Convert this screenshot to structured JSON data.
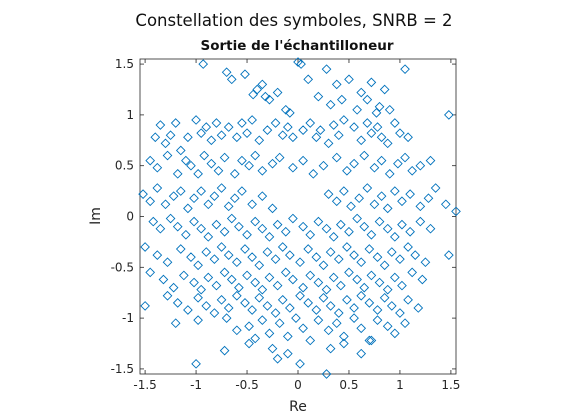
{
  "figure": {
    "suptitle": "Constellation des symboles, SNRB = 2"
  },
  "chart_data": {
    "type": "scatter",
    "title": "Sortie de l'échantilloneur",
    "xlabel": "Re",
    "ylabel": "Im",
    "xlim": [
      -1.55,
      1.55
    ],
    "ylim": [
      -1.55,
      1.55
    ],
    "xticks": [
      -1.5,
      -1,
      -0.5,
      0,
      0.5,
      1,
      1.5
    ],
    "xtick_labels": [
      "-1.5",
      "-1",
      "-0.5",
      "0",
      "0.5",
      "1",
      "1.5"
    ],
    "yticks": [
      -1.5,
      -1,
      -0.5,
      0,
      0.5,
      1,
      1.5
    ],
    "ytick_labels": [
      "-1.5",
      "-1",
      "-0.5",
      "0",
      "0.5",
      "1",
      "1.5"
    ],
    "grid": false,
    "marker": "diamond",
    "marker_color": "#0072BD",
    "series": [
      {
        "x": [
          -1.2,
          -0.93,
          -0.7,
          -0.65,
          -0.52,
          -0.44,
          -0.4,
          -0.35,
          -0.32,
          -0.28,
          -0.2,
          -0.12,
          -0.08,
          0,
          0.03,
          0.1,
          0.2,
          0.28,
          0.32,
          0.38,
          0.43,
          0.5,
          0.58,
          0.62,
          0.68,
          0.72,
          0.77,
          0.8,
          0.85,
          0.9,
          1.05,
          1.48,
          -1.4,
          -1.35,
          -1.3,
          -1.25,
          -1.2,
          -1.15,
          -1.08,
          -1,
          -0.95,
          -0.9,
          -0.85,
          -0.8,
          -0.75,
          -0.68,
          -0.6,
          -0.55,
          -0.5,
          -0.45,
          -0.38,
          -0.3,
          -0.22,
          -0.15,
          -0.1,
          -0.05,
          0.05,
          0.12,
          0.18,
          0.22,
          0.3,
          0.35,
          0.4,
          0.45,
          0.55,
          0.62,
          0.68,
          0.72,
          0.78,
          0.82,
          0.88,
          0.95,
          1.0,
          1.08,
          -1.45,
          -1.38,
          -1.28,
          -1.18,
          -1.1,
          -1.05,
          -0.98,
          -0.92,
          -0.85,
          -0.78,
          -0.72,
          -0.62,
          -0.55,
          -0.48,
          -0.42,
          -0.35,
          -0.25,
          -0.18,
          -0.05,
          0.05,
          0.15,
          0.25,
          0.38,
          0.48,
          0.55,
          0.65,
          0.75,
          0.82,
          0.9,
          0.98,
          1.05,
          1.12,
          1.2,
          1.3,
          -1.52,
          -1.45,
          -1.38,
          -1.3,
          -1.22,
          -1.15,
          -1.08,
          -1.02,
          -0.95,
          -0.88,
          -0.82,
          -0.75,
          -0.68,
          -0.62,
          -0.55,
          -0.45,
          -0.35,
          -0.25,
          0.3,
          0.38,
          0.45,
          0.52,
          0.6,
          0.68,
          0.75,
          0.82,
          0.88,
          0.95,
          1.02,
          1.1,
          1.2,
          1.28,
          1.35,
          1.45,
          1.55,
          -1.42,
          -1.35,
          -1.25,
          -1.18,
          -1.1,
          -1.02,
          -0.95,
          -0.88,
          -0.8,
          -0.72,
          -0.65,
          -0.58,
          -0.5,
          -0.42,
          -0.35,
          -0.28,
          -0.2,
          -0.12,
          -0.05,
          0.05,
          0.12,
          0.2,
          0.28,
          0.35,
          0.42,
          0.5,
          0.58,
          0.65,
          0.72,
          0.8,
          0.88,
          0.95,
          1.02,
          1.1,
          1.2,
          1.3,
          1.48,
          -1.5,
          -1.38,
          -1.28,
          -1.15,
          -1.05,
          -0.98,
          -0.9,
          -0.82,
          -0.75,
          -0.68,
          -0.6,
          -0.52,
          -0.45,
          -0.38,
          -0.3,
          -0.22,
          -0.15,
          -0.08,
          0.02,
          0.1,
          0.18,
          0.25,
          0.32,
          0.4,
          0.48,
          0.55,
          0.62,
          0.7,
          0.78,
          0.85,
          0.92,
          1.0,
          1.08,
          1.15,
          1.25,
          -1.45,
          -1.32,
          -1.22,
          -1.12,
          -1.02,
          -0.95,
          -0.88,
          -0.8,
          -0.72,
          -0.65,
          -0.58,
          -0.5,
          -0.42,
          -0.35,
          -0.28,
          -0.2,
          -0.12,
          -0.05,
          0.05,
          0.12,
          0.2,
          0.28,
          0.35,
          0.42,
          0.5,
          0.58,
          0.65,
          0.72,
          0.8,
          0.88,
          0.95,
          1.02,
          1.12,
          1.22,
          -1.28,
          -1.18,
          -1.08,
          -0.98,
          -0.9,
          -0.82,
          -0.75,
          -0.68,
          -0.6,
          -0.52,
          -0.45,
          -0.38,
          -0.3,
          -0.22,
          -0.15,
          -0.08,
          0.02,
          0.1,
          0.18,
          0.25,
          0.32,
          0.4,
          0.48,
          0.55,
          0.62,
          0.7,
          0.78,
          0.85,
          0.92,
          1.0,
          1.08,
          1.18,
          -1.5,
          -1.2,
          -0.98,
          -0.7,
          -0.6,
          -0.48,
          -0.42,
          -0.35,
          -0.28,
          -0.18,
          -0.1,
          -0.02,
          0.05,
          0.12,
          0.2,
          0.3,
          0.38,
          0.45,
          0.55,
          0.62,
          0.7,
          0.78,
          0.88,
          0.95,
          1.05,
          -1.0,
          -0.72,
          -0.48,
          -0.25,
          -0.2,
          -0.1,
          0.02,
          0.28,
          0.32,
          0.45,
          0.62,
          0.72
        ],
        "y": [
          1.57,
          1.5,
          1.42,
          1.35,
          1.4,
          1.2,
          1.25,
          1.3,
          1.18,
          1.15,
          1.22,
          1.05,
          1.02,
          1.52,
          1.5,
          1.35,
          1.18,
          1.45,
          1.1,
          1.3,
          1.15,
          1.35,
          1.05,
          1.22,
          1.15,
          1.32,
          1.02,
          1.08,
          1.25,
          1.05,
          1.45,
          1.0,
          0.78,
          0.9,
          0.72,
          0.8,
          0.92,
          0.65,
          0.78,
          0.95,
          0.82,
          0.88,
          0.75,
          0.92,
          0.8,
          0.88,
          0.78,
          0.92,
          0.82,
          0.95,
          0.75,
          0.85,
          0.92,
          0.8,
          0.88,
          0.78,
          0.85,
          0.92,
          0.78,
          0.85,
          0.72,
          0.9,
          0.8,
          0.95,
          0.88,
          0.75,
          0.92,
          0.82,
          0.88,
          0.78,
          0.72,
          0.92,
          0.82,
          0.78,
          0.55,
          0.48,
          0.6,
          0.42,
          0.55,
          0.5,
          0.42,
          0.6,
          0.52,
          0.45,
          0.58,
          0.42,
          0.55,
          0.5,
          0.6,
          0.45,
          0.52,
          0.58,
          0.48,
          0.55,
          0.42,
          0.5,
          0.58,
          0.45,
          0.52,
          0.6,
          0.48,
          0.55,
          0.42,
          0.52,
          0.58,
          0.45,
          0.5,
          0.55,
          0.22,
          0.15,
          0.28,
          0.12,
          0.2,
          0.25,
          0.08,
          0.18,
          0.25,
          0.12,
          0.2,
          0.28,
          0.1,
          0.18,
          0.25,
          0.12,
          0.2,
          0.08,
          0.22,
          0.15,
          0.25,
          0.1,
          0.18,
          0.28,
          0.12,
          0.2,
          0.08,
          0.25,
          0.15,
          0.22,
          0.1,
          0.18,
          0.28,
          0.12,
          0.05,
          -0.05,
          -0.12,
          -0.02,
          -0.1,
          -0.18,
          -0.05,
          -0.12,
          -0.2,
          -0.08,
          -0.15,
          -0.02,
          -0.1,
          -0.18,
          -0.05,
          -0.12,
          -0.2,
          -0.08,
          -0.15,
          -0.02,
          -0.1,
          -0.18,
          -0.05,
          -0.12,
          -0.2,
          -0.08,
          -0.15,
          -0.02,
          -0.1,
          -0.18,
          -0.05,
          -0.12,
          -0.2,
          -0.08,
          -0.15,
          -0.05,
          -0.12,
          -0.38,
          -0.3,
          -0.38,
          -0.45,
          -0.32,
          -0.4,
          -0.48,
          -0.35,
          -0.42,
          -0.3,
          -0.38,
          -0.45,
          -0.32,
          -0.4,
          -0.48,
          -0.35,
          -0.42,
          -0.3,
          -0.38,
          -0.45,
          -0.32,
          -0.4,
          -0.48,
          -0.35,
          -0.42,
          -0.3,
          -0.38,
          -0.45,
          -0.32,
          -0.4,
          -0.48,
          -0.35,
          -0.42,
          -0.3,
          -0.38,
          -0.45,
          -0.55,
          -0.62,
          -0.7,
          -0.58,
          -0.65,
          -0.72,
          -0.6,
          -0.68,
          -0.55,
          -0.62,
          -0.7,
          -0.58,
          -0.65,
          -0.72,
          -0.6,
          -0.68,
          -0.55,
          -0.62,
          -0.7,
          -0.58,
          -0.65,
          -0.72,
          -0.6,
          -0.68,
          -0.55,
          -0.62,
          -0.7,
          -0.58,
          -0.65,
          -0.72,
          -0.6,
          -0.68,
          -0.55,
          -0.62,
          -0.78,
          -0.85,
          -0.92,
          -0.8,
          -0.88,
          -0.95,
          -0.82,
          -0.9,
          -0.78,
          -0.85,
          -0.92,
          -0.8,
          -0.88,
          -0.95,
          -0.82,
          -0.9,
          -0.78,
          -0.85,
          -0.92,
          -0.8,
          -0.88,
          -0.95,
          -0.82,
          -0.9,
          -0.78,
          -0.85,
          -0.92,
          -0.8,
          -0.88,
          -0.95,
          -0.82,
          -0.9,
          -0.88,
          -1.05,
          -1.02,
          -1.0,
          -1.12,
          -1.08,
          -1.2,
          -1.02,
          -1.15,
          -1.05,
          -1.18,
          -1.0,
          -1.1,
          -1.22,
          -1.02,
          -1.12,
          -1.05,
          -1.18,
          -1.0,
          -1.1,
          -1.22,
          -1.02,
          -1.08,
          -1.15,
          -1.05,
          -1.45,
          -1.32,
          -1.25,
          -1.3,
          -1.4,
          -1.35,
          -1.45,
          -1.55,
          -1.3,
          -1.25,
          -1.35,
          -1.22
        ]
      }
    ]
  }
}
